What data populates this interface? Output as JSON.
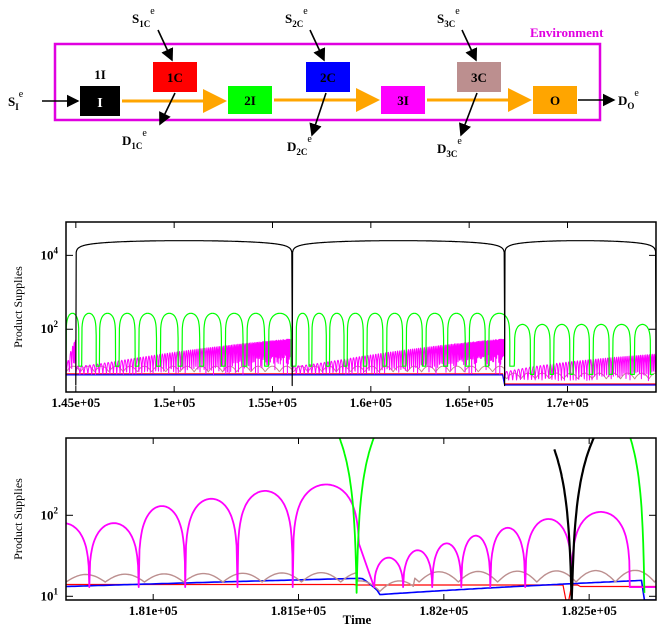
{
  "diagram": {
    "environment_label": "Environment",
    "environment_color": "#e000e0",
    "boxes": [
      {
        "id": "I",
        "label": "I",
        "color": "#000000",
        "text_color": "#ffffff"
      },
      {
        "id": "1C",
        "label": "1C",
        "color": "#ff0000",
        "text_color": "#000000"
      },
      {
        "id": "2I",
        "label": "2I",
        "color": "#00ff00",
        "text_color": "#000000"
      },
      {
        "id": "2C",
        "label": "2C",
        "color": "#0000ff",
        "text_color": "#000000"
      },
      {
        "id": "3I",
        "label": "3I",
        "color": "#ff00ff",
        "text_color": "#000000"
      },
      {
        "id": "3C",
        "label": "3C",
        "color": "#bc8f8f",
        "text_color": "#000000"
      },
      {
        "id": "O",
        "label": "O",
        "color": "#ffa500",
        "text_color": "#000000"
      }
    ],
    "above_I": "1I",
    "supply_in_main": "S",
    "supply_in_sub": "I",
    "supply_1c_main": "S",
    "supply_1c_sub": "1C",
    "supply_2c_main": "S",
    "supply_2c_sub": "2C",
    "supply_3c_main": "S",
    "supply_3c_sub": "3C",
    "demand_1c_main": "D",
    "demand_1c_sub": "1C",
    "demand_2c_main": "D",
    "demand_2c_sub": "2C",
    "demand_3c_main": "D",
    "demand_3c_sub": "3C",
    "demand_out_main": "D",
    "demand_out_sub": "O",
    "superscript": "e",
    "flow_arrow_color": "#ffa500"
  },
  "chart_data": [
    {
      "type": "line",
      "ylabel": "Product Supplies",
      "xlabel": "",
      "xlim": [
        144500,
        174500
      ],
      "xticks": [
        "1.45e+05",
        "1.5e+05",
        "1.55e+05",
        "1.6e+05",
        "1.65e+05",
        "1.7e+05"
      ],
      "xtick_values": [
        145000,
        150000,
        155000,
        160000,
        165000,
        170000
      ],
      "yscale": "log",
      "ylim": [
        2,
        80000
      ],
      "yticks": [
        "10^4",
        "10^2"
      ],
      "ytick_values": [
        10000,
        100
      ],
      "series": [
        {
          "color": "#000000",
          "envelope": "lens",
          "dips": [
            145000,
            156000,
            166800,
            174500
          ],
          "peak": 25000
        },
        {
          "color": "#00ff00",
          "envelope": "arches",
          "approx_peak": 250,
          "approx_min": 10
        },
        {
          "color": "#ff00ff",
          "envelope": "dense-oscillation",
          "approx_range": [
            5,
            60
          ]
        },
        {
          "color": "#bc8f8f",
          "envelope": "dense-oscillation",
          "approx_range": [
            5,
            15
          ]
        },
        {
          "color": "#ff0000",
          "envelope": "flat",
          "approx_value": 6
        },
        {
          "color": "#0000ff",
          "envelope": "flat",
          "approx_value": 6
        }
      ]
    },
    {
      "type": "line",
      "ylabel": "Product Supplies",
      "xlabel": "Time",
      "xlim": [
        180700,
        182730
      ],
      "xticks": [
        "1.81e+05",
        "1.815e+05",
        "1.82e+05",
        "1.825e+05"
      ],
      "xtick_values": [
        181000,
        181500,
        182000,
        182500
      ],
      "yscale": "log",
      "ylim": [
        9,
        900
      ],
      "yticks": [
        "10^2",
        "10^1"
      ],
      "ytick_values": [
        100,
        10
      ],
      "series": [
        {
          "color": "#ff00ff",
          "name": "",
          "peaks": [
            80,
            130,
            160,
            200,
            240,
            30,
            37,
            45,
            56,
            70,
            90,
            110
          ],
          "min": 13
        },
        {
          "color": "#00ff00",
          "peak_window": [
            181680,
            181720
          ]
        },
        {
          "color": "#000000",
          "window": [
            182380,
            182560
          ]
        },
        {
          "color": "#0000ff",
          "start": 14,
          "end": 16
        },
        {
          "color": "#ff0000",
          "value": 14
        },
        {
          "color": "#bc8f8f",
          "range": [
            12,
            22
          ]
        }
      ]
    }
  ]
}
